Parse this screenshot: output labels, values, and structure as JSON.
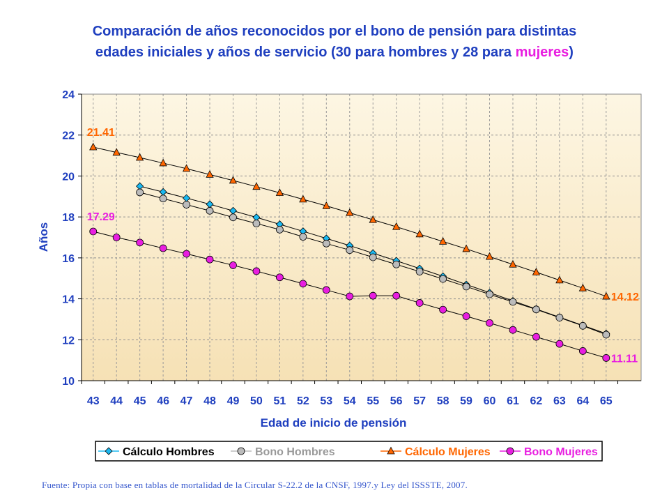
{
  "title": {
    "line1": "Comparación de años reconocidos por el bono de pensión para distintas",
    "line2_prefix": "edades iniciales y años de servicio (30 para hombres y 28 para ",
    "line2_highlight": "mujeres",
    "line2_suffix": ")"
  },
  "footer": "Fuente: Propia con base en tablas de mortalidad de la Circular S-22.2 de la CNSF, 1997.y Ley del ISSSTE, 2007.",
  "colors": {
    "title": "#1f3fbf",
    "highlight": "#e81ee0",
    "axis_text": "#1f3fbf",
    "plot_bg_top": "#fdf6e3",
    "plot_bg_bottom": "#f6e1b5",
    "orange": "#ff6600"
  },
  "chart_data": {
    "type": "line",
    "xlabel": "Edad de inicio de pensión",
    "ylabel": "Años",
    "ylim": [
      10,
      24
    ],
    "yticks": [
      10,
      12,
      14,
      16,
      18,
      20,
      22,
      24
    ],
    "categories": [
      43,
      44,
      45,
      46,
      47,
      48,
      49,
      50,
      51,
      52,
      53,
      54,
      55,
      56,
      57,
      58,
      59,
      60,
      61,
      62,
      63,
      64,
      65
    ],
    "grid": true,
    "legend_position": "bottom",
    "series": [
      {
        "name": "Cálculo Hombres",
        "color": "#1ab8f0",
        "marker": "diamond",
        "label_color": "#000000",
        "values": [
          null,
          null,
          19.5,
          19.22,
          18.92,
          18.62,
          18.3,
          17.98,
          17.64,
          17.3,
          16.95,
          16.6,
          16.23,
          15.86,
          15.48,
          15.1,
          14.7,
          14.3,
          13.9,
          13.5,
          13.1,
          12.7,
          12.3
        ]
      },
      {
        "name": "Bono Hombres",
        "color": "#bbbbbb",
        "marker": "circle",
        "label_color": "#999999",
        "values": [
          null,
          null,
          19.2,
          18.9,
          18.6,
          18.3,
          17.98,
          17.68,
          17.38,
          17.03,
          16.7,
          16.38,
          16.03,
          15.68,
          15.33,
          14.97,
          14.6,
          14.22,
          13.85,
          13.48,
          13.08,
          12.68,
          12.25
        ]
      },
      {
        "name": "Cálculo Mujeres",
        "color": "#ff6600",
        "marker": "triangle",
        "label_color": "#ff6600",
        "values": [
          21.41,
          21.15,
          20.9,
          20.63,
          20.36,
          20.07,
          19.78,
          19.48,
          19.18,
          18.86,
          18.54,
          18.2,
          17.86,
          17.52,
          17.16,
          16.8,
          16.44,
          16.06,
          15.68,
          15.3,
          14.91,
          14.52,
          14.12
        ]
      },
      {
        "name": "Bono Mujeres",
        "color": "#e81ee0",
        "marker": "circle",
        "label_color": "#e81ee0",
        "values": [
          17.29,
          17.0,
          16.75,
          16.47,
          16.2,
          15.92,
          15.64,
          15.35,
          15.05,
          14.74,
          14.43,
          14.12,
          14.15,
          14.15,
          13.8,
          13.47,
          13.15,
          12.82,
          12.48,
          12.14,
          11.8,
          11.45,
          11.11
        ]
      }
    ],
    "annotations": [
      {
        "text": "21.41",
        "series": 2,
        "index": 0,
        "position": "above"
      },
      {
        "text": "17.29",
        "series": 3,
        "index": 0,
        "position": "above"
      },
      {
        "text": "14.12",
        "series": 2,
        "index": 22,
        "position": "right"
      },
      {
        "text": "11.11",
        "series": 3,
        "index": 22,
        "position": "right"
      }
    ]
  }
}
